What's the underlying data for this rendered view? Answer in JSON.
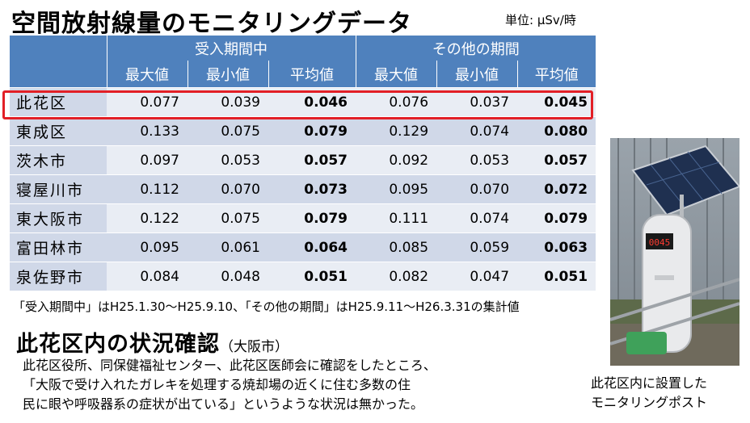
{
  "title": "空間放射線量のモニタリングデータ",
  "unit": "単位: μSv/時",
  "table": {
    "group_headers": [
      "受入期間中",
      "その他の期間"
    ],
    "sub_headers": [
      "最大値",
      "最小値",
      "平均値",
      "最大値",
      "最小値",
      "平均値"
    ],
    "rows": [
      {
        "name": "此花区",
        "values": [
          "0.077",
          "0.039",
          "0.046",
          "0.076",
          "0.037",
          "0.045"
        ]
      },
      {
        "name": "東成区",
        "values": [
          "0.133",
          "0.075",
          "0.079",
          "0.129",
          "0.074",
          "0.080"
        ]
      },
      {
        "name": "茨木市",
        "values": [
          "0.097",
          "0.053",
          "0.057",
          "0.092",
          "0.053",
          "0.057"
        ]
      },
      {
        "name": "寝屋川市",
        "values": [
          "0.112",
          "0.070",
          "0.073",
          "0.095",
          "0.070",
          "0.072"
        ]
      },
      {
        "name": "東大阪市",
        "values": [
          "0.122",
          "0.075",
          "0.079",
          "0.111",
          "0.074",
          "0.079"
        ]
      },
      {
        "name": "富田林市",
        "values": [
          "0.095",
          "0.061",
          "0.064",
          "0.085",
          "0.059",
          "0.063"
        ]
      },
      {
        "name": "泉佐野市",
        "values": [
          "0.084",
          "0.048",
          "0.051",
          "0.082",
          "0.047",
          "0.051"
        ]
      }
    ],
    "highlight_color": "#e21f26",
    "header_color": "#4f81bd"
  },
  "note": "「受入期間中」はH25.1.30～H25.9.10、「その他の期間」はH25.9.11～H26.3.31の集計値",
  "section": {
    "heading": "此花区内の状況確認",
    "subheading": "（大阪市）",
    "lines": [
      "此花区役所、同保健福祉センター、此花区医師会に確認をしたところ、",
      "「大阪で受け入れたガレキを処理する焼却場の近くに住む多数の住",
      "民に眼や呼吸器系の症状が出ている」というような状況は無かった。"
    ]
  },
  "photo": {
    "display_reading": "0045",
    "caption_lines": [
      "此花区内に設置した",
      "モニタリングポスト"
    ]
  }
}
